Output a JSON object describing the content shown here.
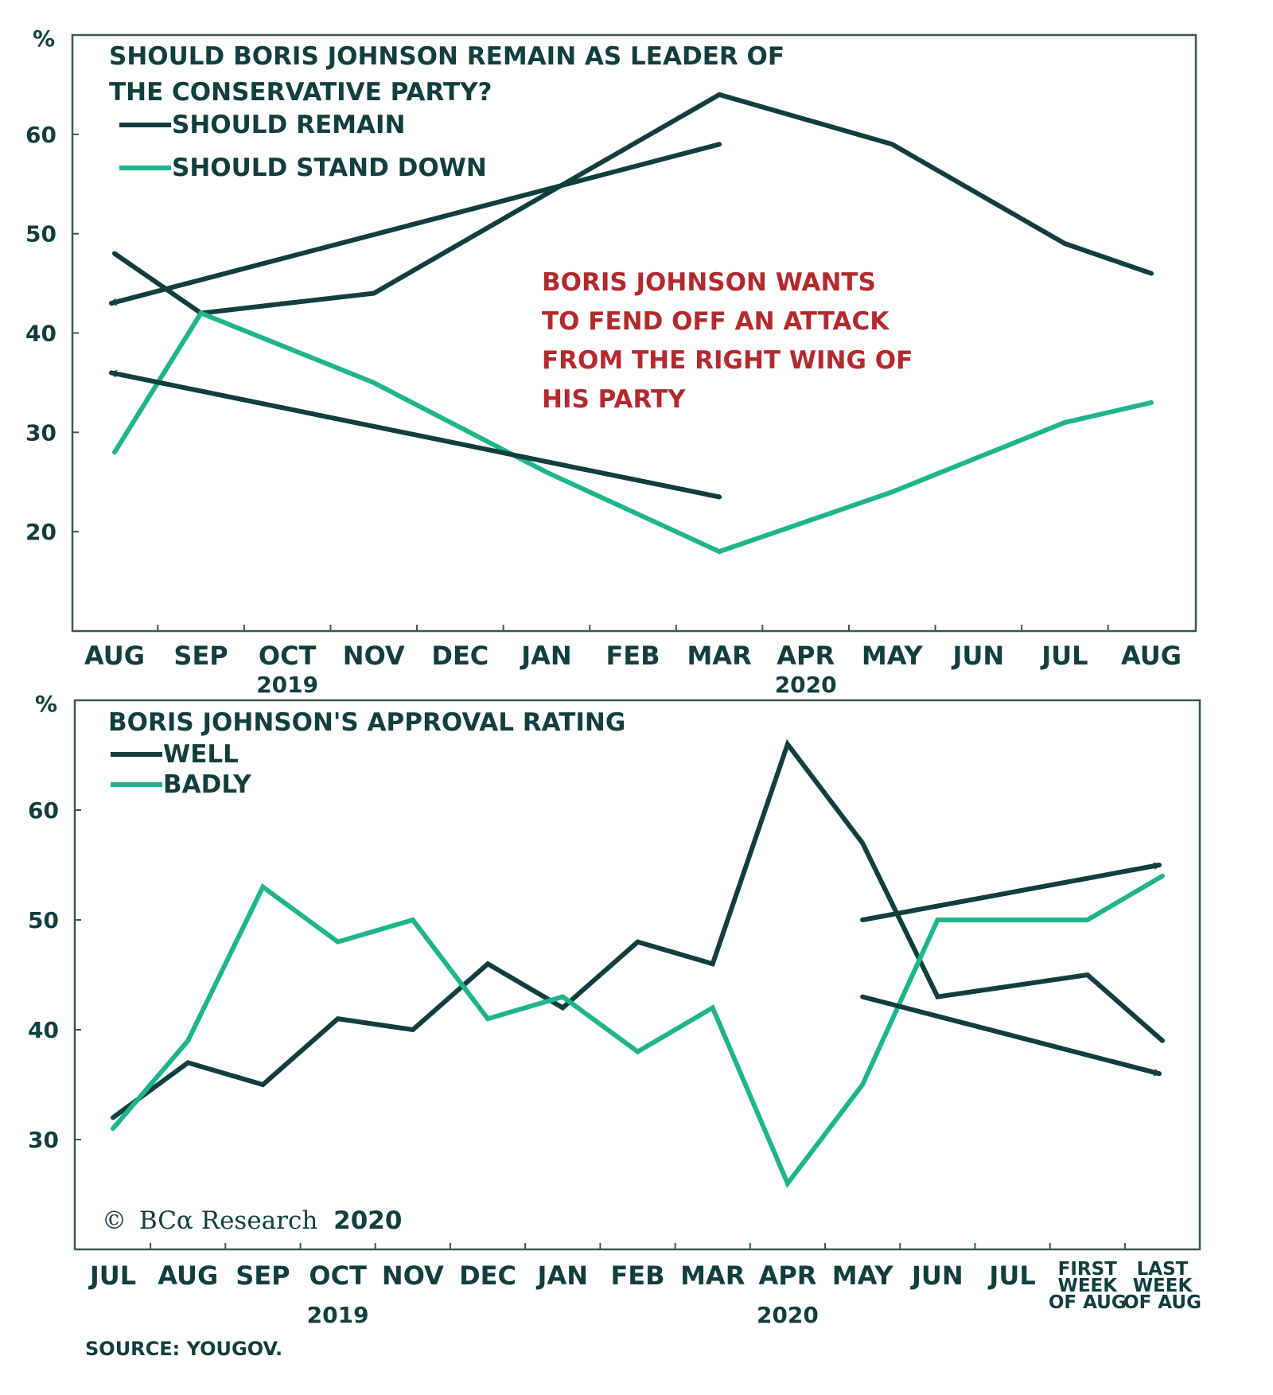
{
  "colors": {
    "dark": "#123e3e",
    "green": "#1fb58a",
    "annotation": "#b22a2e",
    "axis": "#3d5656"
  },
  "source": "SOURCE: YOUGOV.",
  "copyright": {
    "symbol": "©",
    "brand": "BCα Research",
    "year": "2020"
  },
  "chart_data": [
    {
      "type": "line",
      "title": [
        "SHOULD BORIS JOHNSON REMAIN AS LEADER OF",
        "THE CONSERVATIVE PARTY?"
      ],
      "ylabel": "%",
      "ylim": [
        10,
        70
      ],
      "yticks": [
        20,
        30,
        40,
        50,
        60
      ],
      "grid": false,
      "legend_position": "top-left",
      "categories": [
        "AUG",
        "SEP",
        "OCT",
        "NOV",
        "DEC",
        "JAN",
        "FEB",
        "MAR",
        "APR",
        "MAY",
        "JUN",
        "JUL",
        "AUG"
      ],
      "year_labels": [
        {
          "label": "2019",
          "under": "OCT"
        },
        {
          "label": "2020",
          "under": "APR"
        }
      ],
      "series": [
        {
          "name": "SHOULD REMAIN",
          "color": "#123e3e",
          "values": [
            48,
            42,
            43,
            44,
            49,
            54,
            59,
            64,
            61.5,
            59,
            54,
            49,
            46
          ]
        },
        {
          "name": "SHOULD STAND DOWN",
          "color": "#1fb58a",
          "values": [
            28,
            42,
            38.5,
            35,
            30.5,
            26,
            22,
            18,
            21,
            24,
            27.5,
            31,
            33
          ]
        }
      ],
      "annotation": [
        "BORIS JOHNSON WANTS",
        "TO FEND OFF AN ATTACK",
        "FROM THE RIGHT WING OF",
        "HIS PARTY"
      ],
      "arrows": [
        {
          "from": {
            "x": "MAR",
            "y": 59
          },
          "to": {
            "x": "AUG",
            "y": 43
          },
          "direction": "down"
        },
        {
          "from": {
            "x": "MAR",
            "y": 23.5
          },
          "to": {
            "x": "AUG",
            "y": 36
          },
          "direction": "up"
        }
      ]
    },
    {
      "type": "line",
      "title": [
        "BORIS JOHNSON'S APPROVAL RATING"
      ],
      "ylabel": "%",
      "ylim": [
        20,
        70
      ],
      "yticks": [
        30,
        40,
        50,
        60
      ],
      "grid": false,
      "legend_position": "top-left",
      "categories": [
        "JUL",
        "AUG",
        "SEP",
        "OCT",
        "NOV",
        "DEC",
        "JAN",
        "FEB",
        "MAR",
        "APR",
        "MAY",
        "JUN",
        "JUL",
        "FIRST WEEK OF AUG",
        "LAST WEEK OF AUG"
      ],
      "category_lines": [
        [
          "JUL"
        ],
        [
          "AUG"
        ],
        [
          "SEP"
        ],
        [
          "OCT"
        ],
        [
          "NOV"
        ],
        [
          "DEC"
        ],
        [
          "JAN"
        ],
        [
          "FEB"
        ],
        [
          "MAR"
        ],
        [
          "APR"
        ],
        [
          "MAY"
        ],
        [
          "JUN"
        ],
        [
          "JUL"
        ],
        [
          "FIRST",
          "WEEK",
          "OF AUG"
        ],
        [
          "LAST",
          "WEEK",
          "OF AUG"
        ]
      ],
      "year_labels": [
        {
          "label": "2019",
          "under": "OCT"
        },
        {
          "label": "2020",
          "under": "APR"
        }
      ],
      "series": [
        {
          "name": "WELL",
          "color": "#123e3e",
          "values": [
            32,
            37,
            35,
            41,
            40,
            46,
            42,
            48,
            46,
            66,
            57,
            43,
            44,
            45,
            39
          ]
        },
        {
          "name": "BADLY",
          "color": "#1fb58a",
          "values": [
            31,
            39,
            53,
            48,
            50,
            41,
            43,
            38,
            42,
            26,
            35,
            50,
            50,
            50,
            54
          ]
        }
      ],
      "arrows": [
        {
          "from": {
            "x": "MAY",
            "y": 50
          },
          "to": {
            "x": "LAST WEEK OF AUG",
            "y": 55
          },
          "direction": "up"
        },
        {
          "from": {
            "x": "MAY",
            "y": 43
          },
          "to": {
            "x": "LAST WEEK OF AUG",
            "y": 36
          },
          "direction": "down"
        }
      ]
    }
  ]
}
